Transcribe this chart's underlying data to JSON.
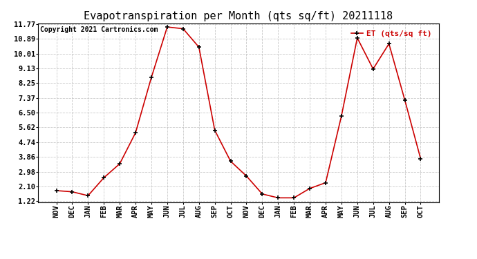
{
  "title": "Evapotranspiration per Month (qts sq/ft) 20211118",
  "copyright": "Copyright 2021 Cartronics.com",
  "legend_label": "ET (qts/sq ft)",
  "months": [
    "NOV",
    "DEC",
    "JAN",
    "FEB",
    "MAR",
    "APR",
    "MAY",
    "JUN",
    "JUL",
    "AUG",
    "SEP",
    "OCT",
    "NOV",
    "DEC",
    "JAN",
    "FEB",
    "MAR",
    "APR",
    "MAY",
    "JUN",
    "JUL",
    "AUG",
    "SEP",
    "OCT"
  ],
  "values": [
    1.85,
    1.78,
    1.55,
    2.62,
    3.45,
    5.3,
    8.6,
    11.6,
    11.5,
    10.4,
    5.45,
    3.6,
    2.72,
    1.65,
    1.42,
    1.42,
    1.98,
    2.32,
    6.3,
    10.95,
    9.1,
    10.6,
    7.25,
    3.75
  ],
  "line_color": "#cc0000",
  "marker_color": "#000000",
  "background_color": "#ffffff",
  "grid_color": "#bbbbbb",
  "yticks": [
    1.22,
    2.1,
    2.98,
    3.86,
    4.74,
    5.62,
    6.5,
    7.37,
    8.25,
    9.13,
    10.01,
    10.89,
    11.77
  ],
  "ylim": [
    1.22,
    11.77
  ],
  "title_fontsize": 11,
  "tick_fontsize": 7.5,
  "copyright_fontsize": 7,
  "legend_fontsize": 8,
  "legend_color": "#cc0000"
}
